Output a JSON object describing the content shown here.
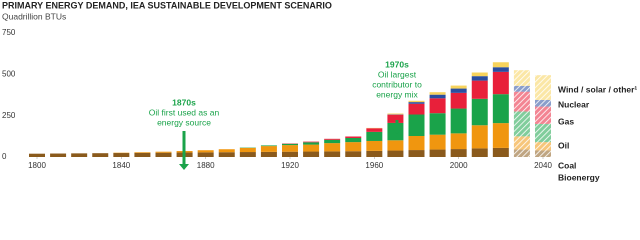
{
  "chart_data": {
    "type": "stacked_bar",
    "title": "PRIMARY ENERGY DEMAND, IEA SUSTAINABLE DEVELOPMENT SCENARIO",
    "subtitle": "Quadrillion BTUs",
    "x": [
      1800,
      1810,
      1820,
      1830,
      1840,
      1850,
      1860,
      1870,
      1880,
      1890,
      1900,
      1910,
      1920,
      1930,
      1940,
      1950,
      1960,
      1970,
      1980,
      1990,
      2000,
      2010,
      2020,
      2030,
      2040
    ],
    "xlim": [
      1795,
      2047
    ],
    "xticks": [
      1800,
      1840,
      1880,
      1920,
      1960,
      2000,
      2040
    ],
    "ylim": [
      0,
      750
    ],
    "yticks": [
      0,
      250,
      500,
      750
    ],
    "hatched_x": [
      2030,
      2040
    ],
    "series": [
      {
        "name": "Bioenergy",
        "color": "#8a5a1c",
        "values": [
          20,
          21,
          22,
          23,
          24,
          25,
          26,
          27,
          28,
          29,
          30,
          31,
          32,
          33,
          34,
          35,
          37,
          39,
          42,
          45,
          48,
          52,
          55,
          45,
          40
        ]
      },
      {
        "name": "Coal",
        "color": "#f0960f",
        "values": [
          0,
          0,
          0,
          0,
          2,
          4,
          6,
          9,
          13,
          18,
          25,
          35,
          40,
          42,
          50,
          55,
          60,
          62,
          85,
          90,
          95,
          140,
          150,
          80,
          50
        ]
      },
      {
        "name": "Oil",
        "color": "#1aa34a",
        "values": [
          0,
          0,
          0,
          0,
          0,
          0,
          0,
          0,
          0,
          0,
          2,
          4,
          8,
          14,
          20,
          25,
          55,
          105,
          130,
          130,
          150,
          160,
          175,
          150,
          110
        ]
      },
      {
        "name": "Gas",
        "color": "#e8203a",
        "values": [
          0,
          0,
          0,
          0,
          0,
          0,
          0,
          0,
          0,
          0,
          0,
          0,
          2,
          4,
          6,
          9,
          22,
          50,
          65,
          90,
          95,
          110,
          135,
          120,
          105
        ]
      },
      {
        "name": "Nuclear",
        "color": "#2a4ea0",
        "values": [
          0,
          0,
          0,
          0,
          0,
          0,
          0,
          0,
          0,
          0,
          0,
          0,
          0,
          0,
          0,
          0,
          0,
          2,
          10,
          22,
          26,
          27,
          28,
          35,
          40
        ]
      },
      {
        "name": "Wind / solar / other¹",
        "color": "#f7d35c",
        "values": [
          0,
          0,
          0,
          0,
          0,
          0,
          0,
          0,
          0,
          0,
          0,
          0,
          0,
          0,
          0,
          0,
          2,
          5,
          8,
          15,
          18,
          22,
          30,
          95,
          150
        ]
      }
    ],
    "annotations": [
      {
        "lines": [
          "1870s",
          "Oil first used as an",
          "energy source"
        ],
        "color": "#1aa34a"
      },
      {
        "lines": [
          "1970s",
          "Oil largest",
          "contributor to",
          "energy mix"
        ],
        "color": "#1aa34a"
      }
    ]
  }
}
